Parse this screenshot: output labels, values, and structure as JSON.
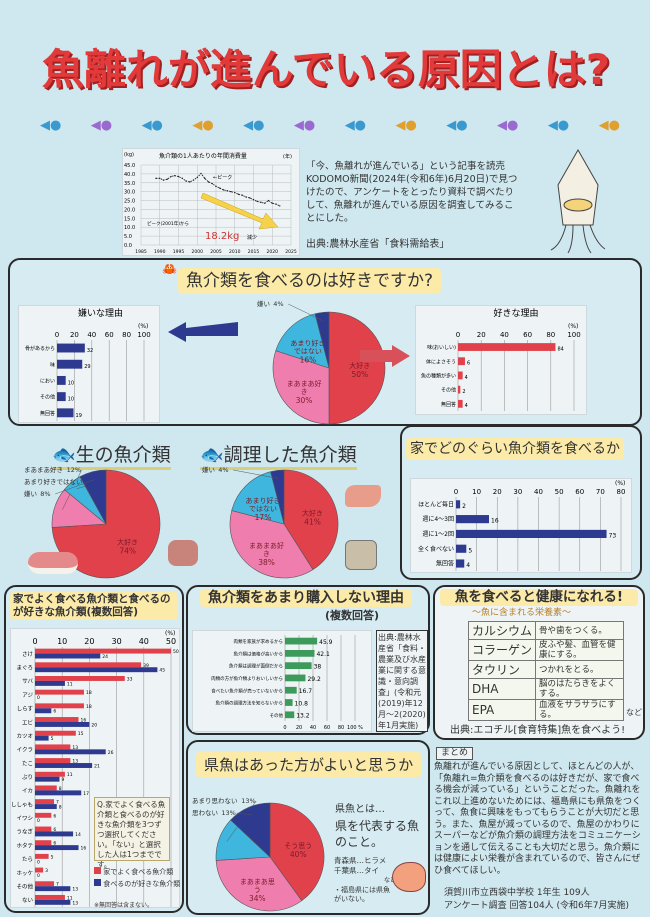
{
  "title": {
    "main": "魚離れが進んでいる原因とは?"
  },
  "colors": {
    "red": "#e0414b",
    "pink": "#ef7eae",
    "cyan": "#3fb6de",
    "navy": "#2e3a8f",
    "green": "#3c9a5a",
    "bg": "#cfe7ee"
  },
  "intro": {
    "text": "「今、魚離れが進んでいる」という記事を読売KODOMO新聞(2024年(令和6年)6月20日)で見つけたので、アンケートをとったり資料で調べたりして、魚離れが進んでいる原因を調査してみることにした。",
    "source": "出典:農林水産省「食料需給表」"
  },
  "chart_data": [
    {
      "type": "line",
      "title": "魚介類の1人あたりの年間消費量",
      "ylabel": "(kg)",
      "xlabel": "(年)",
      "ylim": [
        0,
        45
      ],
      "xlim": [
        1985,
        2025
      ],
      "yticks": [
        "0.0",
        "5.0",
        "10.0",
        "15.0",
        "20.0",
        "25.0",
        "30.0",
        "35.0",
        "40.0",
        "45.0"
      ],
      "xticks": [
        "1985",
        "1990",
        "1995",
        "2000",
        "2005",
        "2010",
        "2015",
        "2020",
        "2025"
      ],
      "x": [
        1989,
        1990,
        1991,
        1992,
        1993,
        1994,
        1995,
        1996,
        1997,
        1998,
        1999,
        2000,
        2001,
        2002,
        2003,
        2004,
        2005,
        2006,
        2007,
        2008,
        2009,
        2010,
        2011,
        2012,
        2013,
        2014,
        2015,
        2016,
        2017,
        2018,
        2019,
        2020,
        2021,
        2022
      ],
      "y": [
        37.5,
        37.5,
        36.5,
        37,
        38.5,
        39,
        38.5,
        37.5,
        36,
        35.5,
        36.5,
        38,
        40.2,
        37.5,
        35.5,
        34.5,
        33,
        32,
        31,
        30.5,
        30,
        29.5,
        28.5,
        28,
        27,
        26.5,
        25.5,
        24.5,
        24,
        23.5,
        25,
        23.5,
        23,
        22
      ],
      "annotations": {
        "peak": "←ピーク",
        "drop_prefix": "ピーク(2001年)から",
        "drop_value": "18.2kg",
        "drop_suffix": "減少"
      }
    },
    {
      "type": "pie",
      "title": "魚介類を食べるのは好きですか?",
      "labels": [
        "大好き",
        "まあまあ好き",
        "あまり好きではない",
        "嫌い"
      ],
      "values": [
        50,
        30,
        16,
        4
      ]
    },
    {
      "type": "bar",
      "title": "嫌いな理由",
      "unit": "(%)",
      "xlim": [
        0,
        100
      ],
      "ticks": [
        "0",
        "20",
        "40",
        "60",
        "80",
        "100"
      ],
      "categories": [
        "骨があるから",
        "味",
        "におい",
        "その他",
        "無回答"
      ],
      "values": [
        32,
        29,
        10,
        10,
        19
      ]
    },
    {
      "type": "bar",
      "title": "好きな理由",
      "unit": "(%)",
      "xlim": [
        0,
        100
      ],
      "ticks": [
        "0",
        "20",
        "40",
        "60",
        "80",
        "100"
      ],
      "categories": [
        "味(おいしい)",
        "体によさそう",
        "魚の種類が多い",
        "その他",
        "無回答"
      ],
      "values": [
        84,
        6,
        4,
        2,
        4
      ]
    },
    {
      "type": "pie",
      "title": "生の魚介類",
      "labels": [
        "大好き",
        "まあまあ好き",
        "あまり好きではない",
        "嫌い"
      ],
      "values": [
        74,
        12,
        6,
        8
      ]
    },
    {
      "type": "pie",
      "title": "調理した魚介類",
      "labels": [
        "大好き",
        "まあまあ好き",
        "あまり好きではない",
        "嫌い"
      ],
      "values": [
        41,
        38,
        17,
        4
      ]
    },
    {
      "type": "bar",
      "title": "家でどのぐらい魚介類を食べるか",
      "unit": "(%)",
      "xlim": [
        0,
        80
      ],
      "ticks": [
        "0",
        "10",
        "20",
        "30",
        "40",
        "50",
        "60",
        "70",
        "80"
      ],
      "categories": [
        "ほとんど毎日",
        "週に4〜3回",
        "週に1〜2回",
        "全く食べない",
        "無回答"
      ],
      "values": [
        2,
        16,
        73,
        5,
        4
      ]
    },
    {
      "type": "bar",
      "title": "家でよく食べる魚介類と食べるのが好きな魚介類(複数回答)",
      "unit": "(%)",
      "xlim": [
        0,
        50
      ],
      "ticks": [
        "0",
        "10",
        "20",
        "30",
        "40",
        "50"
      ],
      "categories": [
        "さけ",
        "まぐろ",
        "サバ",
        "アジ",
        "しらす",
        "エビ",
        "カツオ",
        "イクラ",
        "たこ",
        "ぶり",
        "イカ",
        "ししゃも",
        "イワシ",
        "うなぎ",
        "ホタテ",
        "たら",
        "ホッケ",
        "その他",
        "ない"
      ],
      "series": [
        {
          "name": "家でよく食べる魚介類",
          "values": [
            50,
            39,
            33,
            18,
            18,
            16,
            15,
            13,
            13,
            11,
            8,
            7,
            6,
            6,
            6,
            5,
            3,
            7,
            11
          ]
        },
        {
          "name": "食べるのが好きな魚介類",
          "values": [
            24,
            45,
            11,
            0,
            6,
            20,
            5,
            26,
            21,
            9,
            17,
            8,
            0,
            14,
            16,
            0,
            0,
            13,
            13
          ]
        }
      ],
      "question": "Q.家でよく食べる魚介類と食べるのが好きな魚介類を3つずつ選択してください。「ない」と選択した人は1つまでです。",
      "note": "※無回答は含まない。"
    },
    {
      "type": "bar",
      "title": "魚介類をあまり購入しない理由",
      "subtitle": "(複数回答)",
      "xlim": [
        0,
        100
      ],
      "ticks": [
        "0",
        "20",
        "40",
        "60",
        "80",
        "100 %"
      ],
      "categories": [
        "肉類を家族が求めるから",
        "魚介類は価格が高いから",
        "魚介類は調理が面倒だから",
        "肉類の方が魚介類よりおいしいから",
        "食べたい魚介類が売っていないから",
        "魚介類の調理方法を知らないから",
        "その他"
      ],
      "values": [
        45.9,
        42.1,
        38.0,
        29.2,
        16.7,
        10.8,
        13.2
      ],
      "source": "出典:農林水産省「食料・農業及び水産業に関する意識・意向調査」(令和元(2019)年12月〜2(2020)年1月実施)"
    },
    {
      "type": "pie",
      "title": "県魚はあった方がよいと思うか",
      "labels": [
        "そう思う",
        "まあまあ思う",
        "あまり思わない",
        "思わない"
      ],
      "values": [
        40,
        34,
        13,
        13
      ]
    }
  ],
  "kengyo": {
    "heading": "県魚とは…",
    "definition": "県を代表する魚のこと。",
    "examples": "青森県…ヒラメ\n千葉県…タイ",
    "etc": "など",
    "fukushima": "・福島県には県魚がいない。"
  },
  "health": {
    "title": "魚を食べると健康になれる!",
    "subtitle": "〜魚に含まれる栄養素〜",
    "rows": [
      {
        "k": "カルシウム",
        "v": "骨や歯をつくる。"
      },
      {
        "k": "コラーゲン",
        "v": "皮ふや髪、血管を健康にする。"
      },
      {
        "k": "タウリン",
        "v": "つかれをとる。"
      },
      {
        "k": "DHA",
        "v": "脳のはたらきをよくする。"
      },
      {
        "k": "EPA",
        "v": "血液をサラサラにする。"
      }
    ],
    "etc": "など",
    "source": "出典:エコチル[食育特集]魚を食べよう!"
  },
  "summary": {
    "label": "まとめ",
    "text": "魚離れが進んでいる原因として、ほとんどの人が、「魚離れ=魚介類を食べるのは好きだが、家で食べる機会が減っている」ということだった。魚離れをこれ以上進めないためには、福島県にも県魚をつくって、魚食に興味をもってもらうことが大切だと思う。また、魚屋が減っているので、魚屋のかわりにスーパーなどが魚介類の調理方法をコミュニケーションを通して伝えることも大切だと思う。魚介類には健康によい栄養が含まれているので、皆さんにぜひ食べてほしい。",
    "school": "須賀川市立西袋中学校 1年生 109人",
    "survey": "アンケート調査 回答104人 (令和6年7月実施)"
  }
}
